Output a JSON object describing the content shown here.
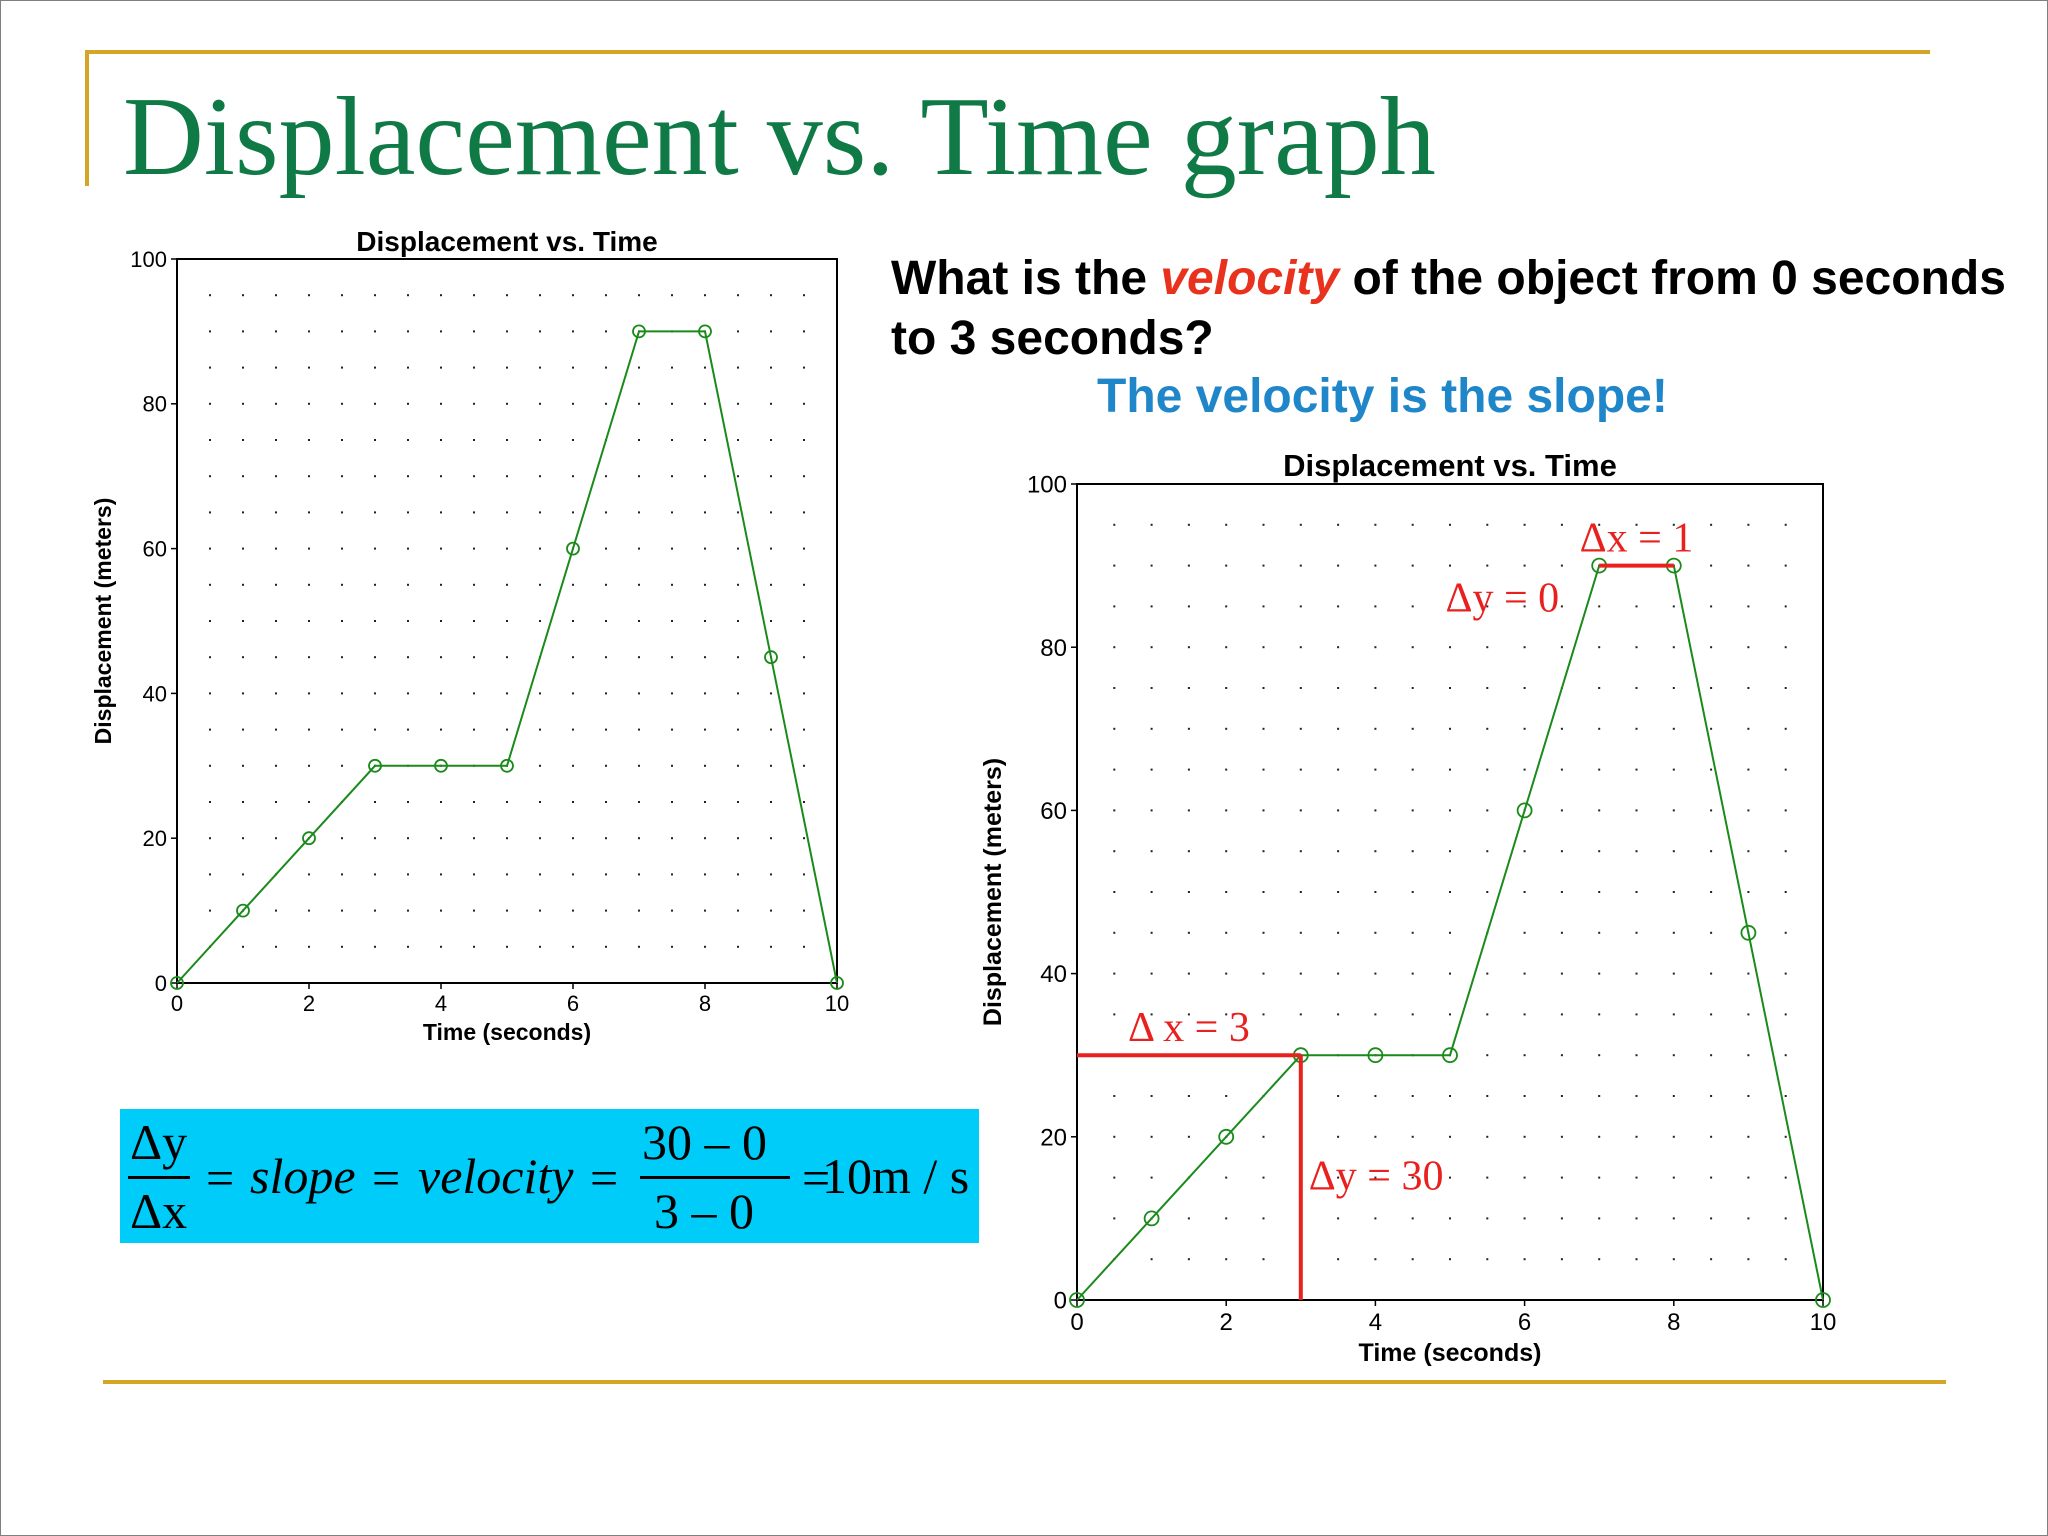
{
  "slide": {
    "title": "Displacement vs. Time graph",
    "question_prefix": "What is the ",
    "question_keyword": "velocity",
    "question_suffix": " of the object from 0 seconds to 3 seconds?",
    "answer": "The velocity is the slope!"
  },
  "formula": {
    "dy": "Δy",
    "dx": "Δx",
    "eq1": "=",
    "slope": "slope",
    "eq2": "=",
    "velocity": "velocity",
    "eq3": "=",
    "numerator": "30 – 0",
    "denominator": "3 – 0",
    "eq4": "=",
    "result": "10m / s"
  },
  "colors": {
    "title": "#0f7a46",
    "accent_rule": "#d4a526",
    "keyword": "#e8321e",
    "answer": "#1f87c9",
    "formula_bg": "#00ccf9",
    "series_line": "#1a8a1a",
    "annotation": "#e8201e"
  },
  "chart_data": [
    {
      "type": "line",
      "title": "Displacement vs. Time",
      "xlabel": "Time (seconds)",
      "ylabel": "Displacement (meters)",
      "xlim": [
        0,
        10
      ],
      "ylim": [
        0,
        100
      ],
      "xticks": [
        0,
        2,
        4,
        6,
        8,
        10
      ],
      "yticks": [
        0,
        20,
        40,
        60,
        80,
        100
      ],
      "grid": "dotted",
      "series": [
        {
          "x": [
            0,
            1,
            2,
            3,
            4,
            5,
            6,
            7,
            8,
            9,
            10
          ],
          "y": [
            0,
            10,
            20,
            30,
            30,
            30,
            60,
            90,
            90,
            45,
            0
          ],
          "marker": "open-circle"
        }
      ]
    },
    {
      "type": "line",
      "title": "Displacement vs. Time",
      "xlabel": "Time (seconds)",
      "ylabel": "Displacement (meters)",
      "xlim": [
        0,
        10
      ],
      "ylim": [
        0,
        100
      ],
      "xticks": [
        0,
        2,
        4,
        6,
        8,
        10
      ],
      "yticks": [
        0,
        20,
        40,
        60,
        80,
        100
      ],
      "grid": "dotted",
      "series": [
        {
          "x": [
            0,
            1,
            2,
            3,
            4,
            5,
            6,
            7,
            8,
            9,
            10
          ],
          "y": [
            0,
            10,
            20,
            30,
            30,
            30,
            60,
            90,
            90,
            45,
            0
          ],
          "marker": "open-circle"
        }
      ],
      "annotations": [
        {
          "text": "Δ x = 3",
          "kind": "horizontal",
          "x1": 0,
          "x2": 3,
          "y": 30
        },
        {
          "text": "Δy = 30",
          "kind": "vertical",
          "x": 3,
          "y1": 0,
          "y2": 30
        },
        {
          "text": "Δx = 1",
          "kind": "horizontal",
          "x1": 7,
          "x2": 8,
          "y": 90
        },
        {
          "text": "Δy = 0",
          "kind": "label",
          "x": 7,
          "y": 90
        }
      ]
    }
  ]
}
